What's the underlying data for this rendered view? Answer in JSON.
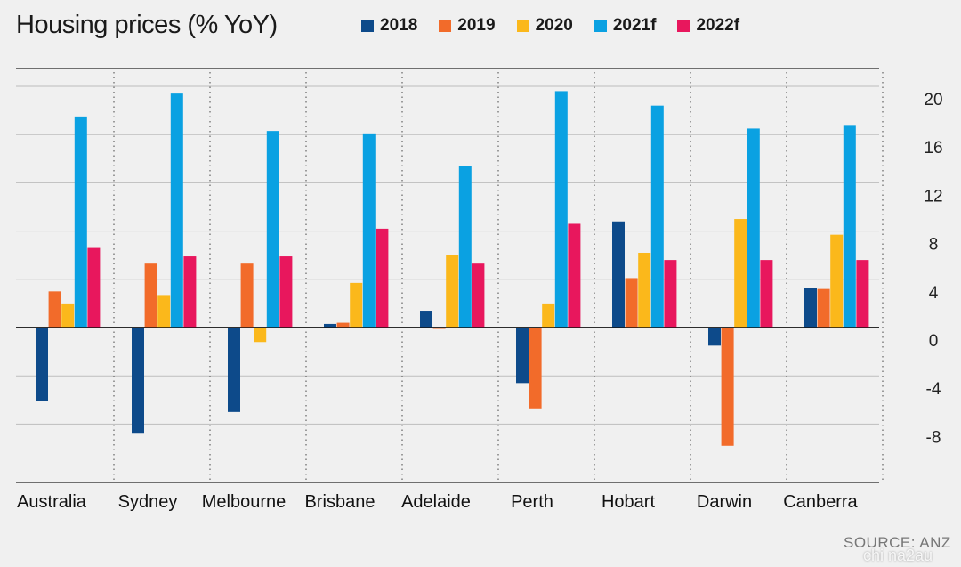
{
  "title": "Housing prices (% YoY)",
  "source": "SOURCE: ANZ",
  "watermark": "chi na2au",
  "colors": {
    "2018": "#0d4a8a",
    "2019": "#f26b2a",
    "2020": "#fbb81b",
    "2021f": "#0aa1e2",
    "2022f": "#e8175d",
    "background": "#f0f0f0"
  },
  "chart_data": {
    "type": "bar",
    "title": "Housing prices (% YoY)",
    "xlabel": "",
    "ylabel": "",
    "ylim": [
      -12,
      20
    ],
    "yticks": [
      20,
      16,
      12,
      8,
      4,
      0,
      -4,
      -8
    ],
    "ytick_labels": [
      "20",
      "16",
      "12",
      "8",
      "4",
      "0",
      "-4",
      "-8"
    ],
    "grid": true,
    "legend_position": "top",
    "categories": [
      "Australia",
      "Sydney",
      "Melbourne",
      "Brisbane",
      "Adelaide",
      "Perth",
      "Hobart",
      "Darwin",
      "Canberra"
    ],
    "series": [
      {
        "name": "2018",
        "values": [
          -6.1,
          -8.8,
          -7.0,
          0.3,
          1.4,
          -4.6,
          8.8,
          -1.5,
          3.3
        ]
      },
      {
        "name": "2019",
        "values": [
          3.0,
          5.3,
          5.3,
          0.4,
          -0.1,
          -6.7,
          4.1,
          -9.8,
          3.2
        ]
      },
      {
        "name": "2020",
        "values": [
          2.0,
          2.7,
          -1.2,
          3.7,
          6.0,
          2.0,
          6.2,
          9.0,
          7.7
        ]
      },
      {
        "name": "2021f",
        "values": [
          17.5,
          19.4,
          16.3,
          16.1,
          13.4,
          19.6,
          18.4,
          16.5,
          16.8
        ]
      },
      {
        "name": "2022f",
        "values": [
          6.6,
          5.9,
          5.9,
          8.2,
          5.3,
          8.6,
          5.6,
          5.6,
          5.6
        ]
      }
    ]
  }
}
